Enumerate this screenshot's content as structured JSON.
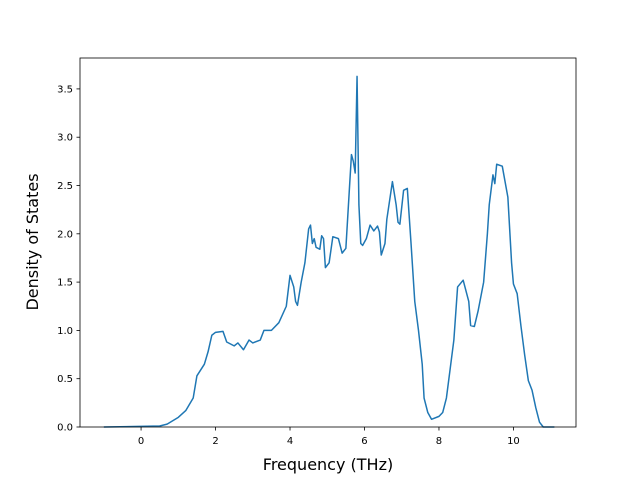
{
  "chart_data": {
    "type": "line",
    "xlabel": "Frequency (THz)",
    "ylabel": "Density of States",
    "x": [
      -1,
      0.5,
      0.7,
      1.0,
      1.2,
      1.4,
      1.5,
      1.7,
      1.8,
      1.9,
      2.0,
      2.2,
      2.3,
      2.5,
      2.6,
      2.75,
      2.9,
      3.0,
      3.2,
      3.3,
      3.5,
      3.7,
      3.9,
      4.0,
      4.1,
      4.15,
      4.2,
      4.3,
      4.4,
      4.5,
      4.55,
      4.6,
      4.65,
      4.7,
      4.8,
      4.85,
      4.9,
      4.95,
      5.05,
      5.15,
      5.3,
      5.4,
      5.5,
      5.6,
      5.65,
      5.7,
      5.75,
      5.8,
      5.85,
      5.9,
      5.95,
      6.05,
      6.15,
      6.25,
      6.35,
      6.4,
      6.45,
      6.55,
      6.6,
      6.75,
      6.85,
      6.9,
      6.95,
      7.05,
      7.15,
      7.25,
      7.35,
      7.45,
      7.55,
      7.6,
      7.7,
      7.8,
      8.0,
      8.1,
      8.2,
      8.3,
      8.4,
      8.5,
      8.65,
      8.8,
      8.85,
      8.95,
      9.05,
      9.2,
      9.3,
      9.35,
      9.45,
      9.5,
      9.55,
      9.7,
      9.85,
      9.95,
      10.0,
      10.1,
      10.2,
      10.3,
      10.4,
      10.5,
      10.6,
      10.7,
      10.8,
      11.1
    ],
    "values": [
      0,
      0.01,
      0.03,
      0.1,
      0.17,
      0.3,
      0.53,
      0.65,
      0.78,
      0.95,
      0.98,
      0.99,
      0.88,
      0.84,
      0.87,
      0.8,
      0.9,
      0.87,
      0.9,
      1.0,
      1.0,
      1.08,
      1.25,
      1.57,
      1.45,
      1.3,
      1.26,
      1.5,
      1.7,
      2.05,
      2.09,
      1.9,
      1.95,
      1.86,
      1.84,
      1.98,
      1.95,
      1.65,
      1.7,
      1.97,
      1.95,
      1.8,
      1.85,
      2.5,
      2.82,
      2.75,
      2.63,
      3.63,
      2.3,
      1.9,
      1.88,
      1.95,
      2.09,
      2.03,
      2.08,
      2.02,
      1.78,
      1.9,
      2.15,
      2.54,
      2.3,
      2.12,
      2.1,
      2.45,
      2.47,
      1.9,
      1.3,
      1.0,
      0.65,
      0.3,
      0.15,
      0.08,
      0.11,
      0.15,
      0.3,
      0.6,
      0.9,
      1.45,
      1.52,
      1.3,
      1.05,
      1.04,
      1.2,
      1.5,
      2.0,
      2.3,
      2.61,
      2.52,
      2.72,
      2.7,
      2.38,
      1.7,
      1.48,
      1.38,
      1.05,
      0.75,
      0.48,
      0.38,
      0.2,
      0.05,
      0.0,
      0.0
    ],
    "color": "#1f77b4",
    "xlim": [
      -1.64,
      11.68
    ],
    "xticks": [
      0,
      2,
      4,
      6,
      8,
      10
    ],
    "ylim": [
      0,
      3.82
    ],
    "yticks": [
      {
        "value": 0,
        "label": "0.0"
      },
      0.5,
      {
        "value": 1,
        "label": "1.0"
      },
      1.5,
      {
        "value": 2,
        "label": "2.0"
      },
      2.5,
      {
        "value": 3,
        "label": "3.0"
      },
      3.5
    ]
  }
}
